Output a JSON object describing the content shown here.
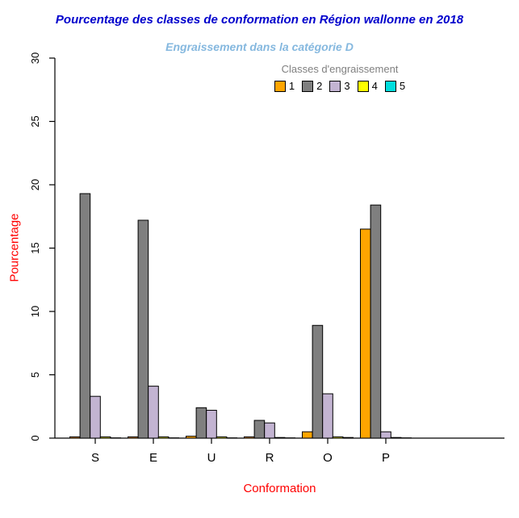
{
  "title": "Pourcentage des classes de conformation en Région wallonne en 2018",
  "subtitle": "Engraissement dans la catégorie D",
  "colors": {
    "title": "#0000CC",
    "subtitle": "#85B8DF",
    "axis_label": "#FF0000",
    "legend_title": "#808080",
    "axis_line": "#000000",
    "bar_border": "#000000"
  },
  "chart_data": {
    "type": "bar",
    "title": "Pourcentage des classes de conformation en Région wallonne en 2018",
    "subtitle": "Engraissement dans la catégorie D",
    "xlabel": "Conformation",
    "ylabel": "Pourcentage",
    "legend_title": "Classes d'engraissement",
    "legend_position": "top",
    "grid": false,
    "ylim": [
      0,
      30
    ],
    "yticks": [
      0,
      5,
      10,
      15,
      20,
      25,
      30
    ],
    "categories": [
      "S",
      "E",
      "U",
      "R",
      "O",
      "P"
    ],
    "series": [
      {
        "name": "1",
        "color": "#FFA500",
        "values": [
          0.1,
          0.1,
          0.15,
          0.1,
          0.5,
          16.5
        ]
      },
      {
        "name": "2",
        "color": "#7F7F7F",
        "values": [
          19.3,
          17.2,
          2.4,
          1.4,
          8.9,
          18.4
        ]
      },
      {
        "name": "3",
        "color": "#C3B4D2",
        "values": [
          3.3,
          4.1,
          2.2,
          1.2,
          3.5,
          0.5
        ]
      },
      {
        "name": "4",
        "color": "#FFFF00",
        "values": [
          0.1,
          0.1,
          0.1,
          0.05,
          0.1,
          0.05
        ]
      },
      {
        "name": "5",
        "color": "#00DDDD",
        "values": [
          0.02,
          0.02,
          0.02,
          0.02,
          0.05,
          0.02
        ]
      }
    ]
  }
}
